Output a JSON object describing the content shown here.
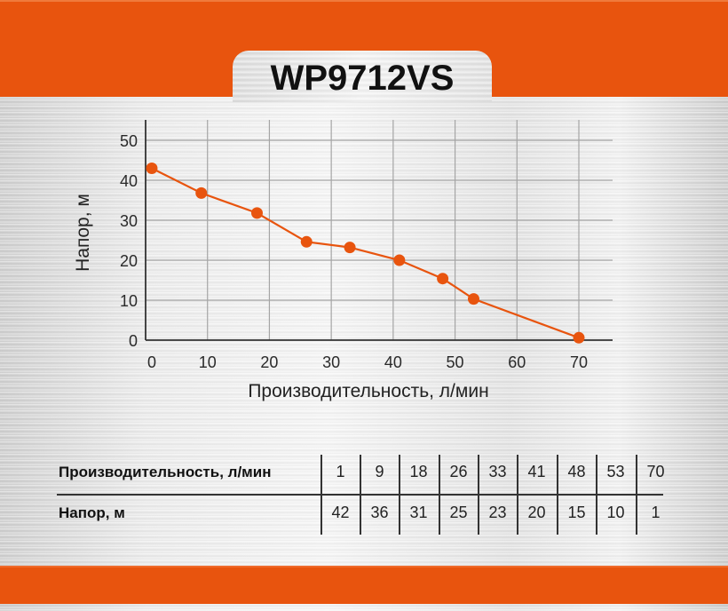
{
  "header": {
    "title": "WP9712VS"
  },
  "colors": {
    "accent": "#e8540e",
    "line": "#e8540e",
    "grid": "#9a9a9a",
    "axis": "#333333"
  },
  "chart_data": {
    "type": "line",
    "title": "WP9712VS",
    "xlabel": "Производительность, л/мин",
    "ylabel": "Напор, м",
    "x": [
      1,
      9,
      18,
      26,
      33,
      41,
      48,
      53,
      70
    ],
    "series": [
      {
        "name": "Напор, м",
        "values": [
          42,
          36,
          31,
          25,
          23,
          20,
          15,
          10,
          1
        ]
      }
    ],
    "xlim": [
      0,
      70
    ],
    "ylim": [
      0,
      50
    ],
    "xticks": [
      "0",
      "10",
      "20",
      "30",
      "40",
      "50",
      "60",
      "70"
    ],
    "yticks": [
      "0",
      "10",
      "20",
      "30",
      "40",
      "50"
    ],
    "grid": true,
    "legend": null
  },
  "table": {
    "row_labels": [
      "Производительность, л/мин",
      "Напор, м"
    ],
    "flow": [
      "1",
      "9",
      "18",
      "26",
      "33",
      "41",
      "48",
      "53",
      "70"
    ],
    "head": [
      "42",
      "36",
      "31",
      "25",
      "23",
      "20",
      "15",
      "10",
      "1"
    ]
  }
}
